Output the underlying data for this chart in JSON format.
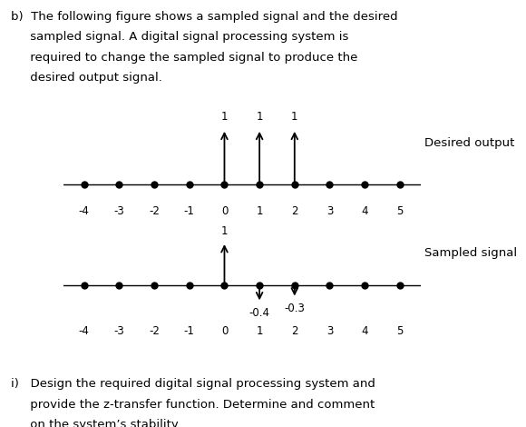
{
  "desired_output": {
    "n_range": [
      -4,
      5
    ],
    "impulses": {
      "0": 1,
      "1": 1,
      "2": 1
    },
    "label": "Desired output"
  },
  "sampled_signal": {
    "n_range": [
      -4,
      5
    ],
    "impulses": {
      "0": 1,
      "1": -0.4,
      "2": -0.3
    },
    "label": "Sampled signal"
  },
  "header_line1": "b)  The following figure shows a sampled signal and the desired",
  "header_line2": "     sampled signal. A digital signal processing system is",
  "header_line3": "     required to change the sampled signal to produce the",
  "header_line4": "     desired output signal.",
  "footer_line1": "i)   Design the required digital signal processing system and",
  "footer_line2": "     provide the z-transfer function. Determine and comment",
  "footer_line3": "     on the system’s stability.",
  "arrow_color": "#000000",
  "dot_color": "#000000",
  "line_color": "#000000",
  "bg_color": "#ffffff",
  "label_fontsize": 9.5,
  "tick_fontsize": 8.5,
  "text_fontsize": 9.5,
  "impulse_label_fontsize": 8.5
}
